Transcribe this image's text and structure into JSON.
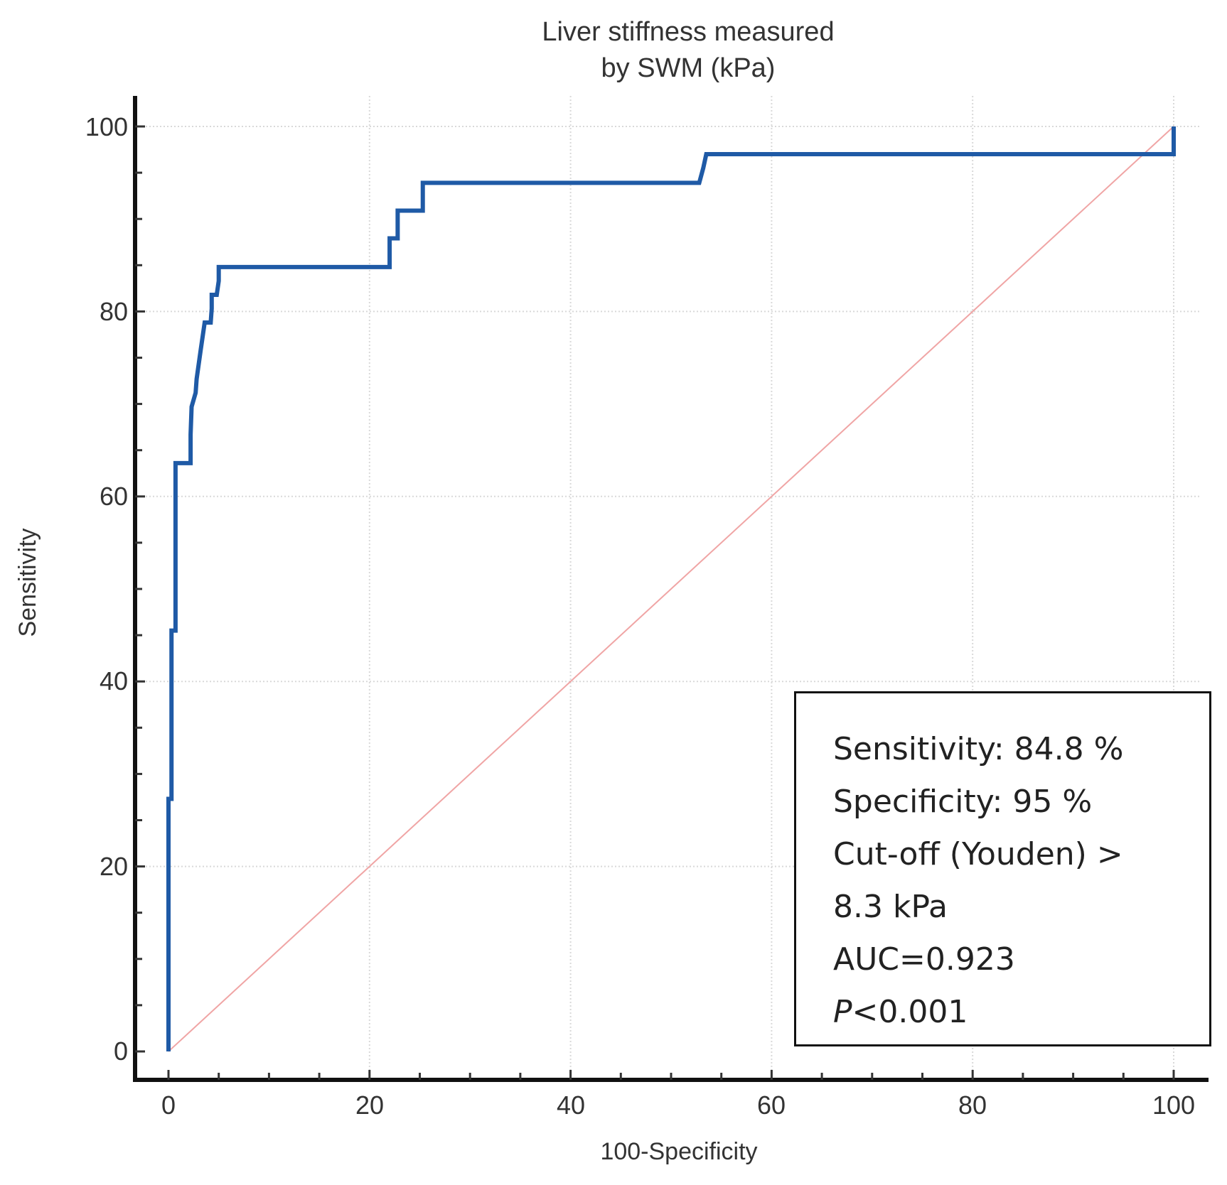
{
  "chart_data": {
    "type": "line",
    "title_lines": [
      "Liver stiffness measured",
      "by SWM (kPa)"
    ],
    "xlabel": "100-Specificity",
    "ylabel": "Sensitivity",
    "xlim": [
      0,
      100
    ],
    "ylim": [
      0,
      100
    ],
    "x_ticks": [
      "0",
      "20",
      "40",
      "60",
      "80",
      "100"
    ],
    "y_ticks": [
      "0",
      "20",
      "40",
      "60",
      "80",
      "100"
    ],
    "grid": true,
    "colors": {
      "roc": "#1f5aa6",
      "reference": "#f0a5a5"
    },
    "series": [
      {
        "name": "ROC curve",
        "x": [
          0,
          0,
          0.3,
          0.3,
          0.7,
          0.7,
          1.2,
          1.2,
          2.2,
          2.2,
          2.3,
          2.7,
          2.8,
          3.2,
          3.4,
          3.6,
          3.6,
          4.2,
          4.3,
          4.3,
          4.8,
          5,
          5,
          22,
          22,
          22.8,
          22.8,
          25.3,
          25.3,
          52.8,
          53.2,
          53.5,
          100,
          100
        ],
        "y": [
          0,
          27.3,
          27.3,
          45.5,
          45.5,
          63.6,
          63.6,
          63.6,
          63.6,
          66.7,
          69.7,
          71.2,
          72.7,
          75.8,
          77.3,
          78.8,
          78.8,
          78.8,
          80.3,
          81.8,
          81.8,
          83.3,
          84.8,
          84.8,
          87.9,
          87.9,
          90.9,
          90.9,
          93.9,
          93.9,
          95.5,
          97,
          97,
          100
        ]
      },
      {
        "name": "Reference line",
        "x": [
          0,
          100
        ],
        "y": [
          0,
          100
        ]
      }
    ],
    "annotation": {
      "sensitivity": "Sensitivity: 84.8 %",
      "specificity": "Specificity: 95 %",
      "cutoff_line1": "Cut-off  (Youden) >",
      "cutoff_line2": "8.3 kPa",
      "auc": "AUC=0.923",
      "p_label": "P",
      "p_value": "<0.001"
    }
  }
}
